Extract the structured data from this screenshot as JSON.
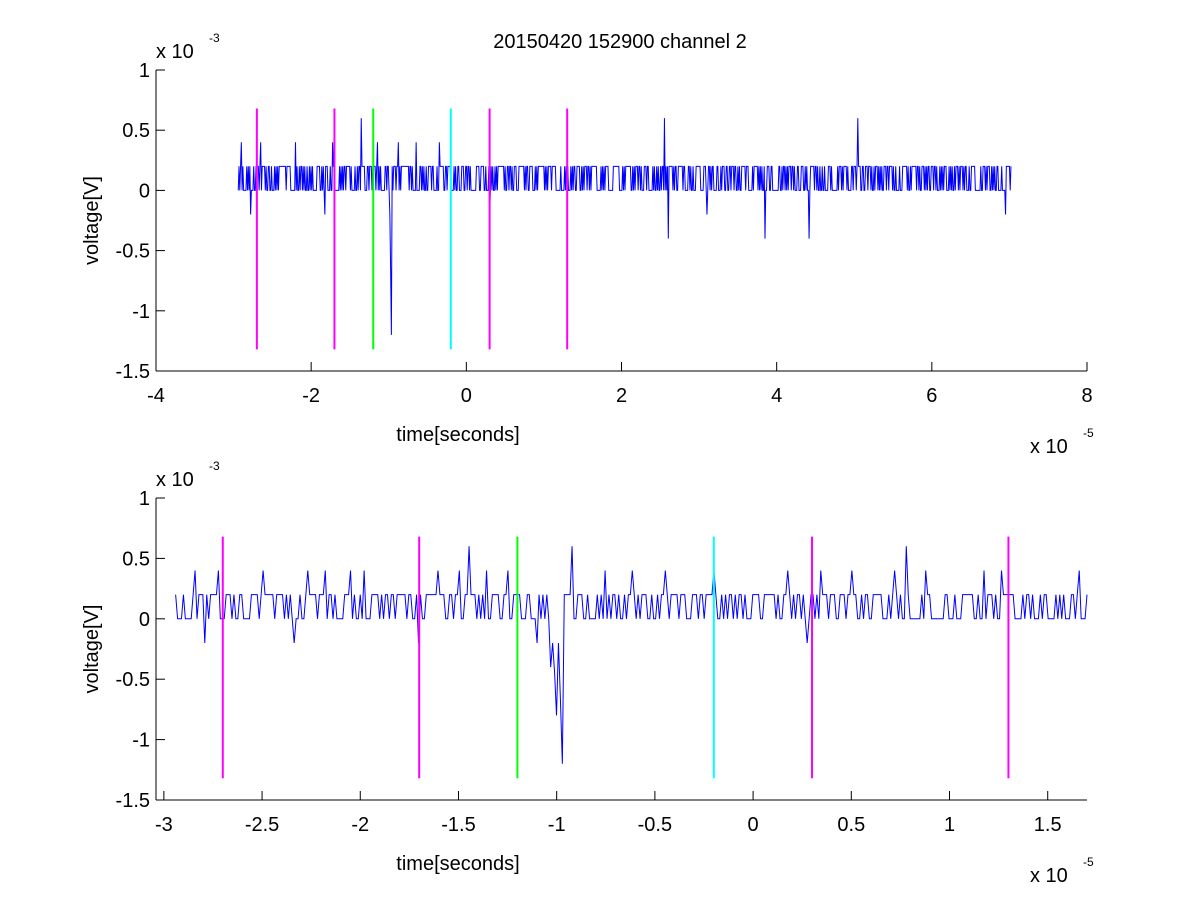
{
  "figure": {
    "title": "20150420 152900 channel 2",
    "background": "#ffffff"
  },
  "chart_data": [
    {
      "type": "line",
      "title": "20150420 152900 channel 2",
      "xlabel": "time[seconds]",
      "ylabel": "voltage[V]",
      "x_multiplier_label": "x 10",
      "x_multiplier_exp": "-5",
      "y_multiplier_label": "x 10",
      "y_multiplier_exp": "-3",
      "xlim": [
        -4,
        8
      ],
      "ylim": [
        -1.5,
        1
      ],
      "xticks": [
        -4,
        -2,
        0,
        2,
        4,
        6,
        8
      ],
      "xtick_labels": [
        "-4",
        "-2",
        "0",
        "2",
        "4",
        "6",
        "8"
      ],
      "yticks": [
        -1.5,
        -1,
        -0.5,
        0,
        0.5,
        1
      ],
      "ytick_labels": [
        "-1.5",
        "-1",
        "-0.5",
        "0",
        "0.5",
        "1"
      ],
      "grid": false,
      "series": [
        {
          "color": "#0000ff",
          "x_start": -2.94,
          "x_end": 7.02,
          "n_points": 1000,
          "baseline_levels": [
            0,
            0.2
          ],
          "spikes": [
            {
              "x": -2.9,
              "y": 0.4
            },
            {
              "x": -2.78,
              "y": -0.2
            },
            {
              "x": -2.65,
              "y": 0.4
            },
            {
              "x": -2.2,
              "y": 0.4
            },
            {
              "x": -1.82,
              "y": -0.2
            },
            {
              "x": -1.72,
              "y": 0.4
            },
            {
              "x": -1.35,
              "y": 0.6
            },
            {
              "x": -1.15,
              "y": 0.4
            },
            {
              "x": -0.97,
              "y": -1.2
            },
            {
              "x": -0.88,
              "y": 0.4
            },
            {
              "x": -0.65,
              "y": 0.4
            },
            {
              "x": -0.35,
              "y": 0.4
            },
            {
              "x": 0.3,
              "y": -0.2
            },
            {
              "x": 2.6,
              "y": -0.4
            },
            {
              "x": 2.55,
              "y": 0.6
            },
            {
              "x": 3.1,
              "y": -0.2
            },
            {
              "x": 3.85,
              "y": -0.4
            },
            {
              "x": 4.42,
              "y": -0.4
            },
            {
              "x": 5.05,
              "y": 0.6
            },
            {
              "x": 6.95,
              "y": -0.2
            }
          ]
        }
      ],
      "markers": [
        {
          "x": -2.7,
          "y0": -1.32,
          "y1": 0.68,
          "color": "#ff00ff"
        },
        {
          "x": -1.7,
          "y0": -1.32,
          "y1": 0.68,
          "color": "#ff00ff"
        },
        {
          "x": -1.2,
          "y0": -1.32,
          "y1": 0.68,
          "color": "#00ff00"
        },
        {
          "x": -0.2,
          "y0": -1.32,
          "y1": 0.68,
          "color": "#00ffff"
        },
        {
          "x": 0.3,
          "y0": -1.32,
          "y1": 0.68,
          "color": "#ff00ff"
        },
        {
          "x": 1.3,
          "y0": -1.32,
          "y1": 0.68,
          "color": "#ff00ff"
        }
      ]
    },
    {
      "type": "line",
      "title": "",
      "xlabel": "time[seconds]",
      "ylabel": "voltage[V]",
      "x_multiplier_label": "x 10",
      "x_multiplier_exp": "-5",
      "y_multiplier_label": "x 10",
      "y_multiplier_exp": "-3",
      "xlim": [
        -3.04,
        1.7
      ],
      "ylim": [
        -1.5,
        1
      ],
      "xticks": [
        -3,
        -2.5,
        -2,
        -1.5,
        -1,
        -0.5,
        0,
        0.5,
        1,
        1.5
      ],
      "xtick_labels": [
        "-3",
        "-2.5",
        "-2",
        "-1.5",
        "-1",
        "-0.5",
        "0",
        "0.5",
        "1",
        "1.5"
      ],
      "yticks": [
        -1.5,
        -1,
        -0.5,
        0,
        0.5,
        1
      ],
      "ytick_labels": [
        "-1.5",
        "-1",
        "-0.5",
        "0",
        "0.5",
        "1"
      ],
      "grid": false,
      "series": [
        {
          "color": "#0000ff",
          "x_start": -2.94,
          "x_end": 1.7,
          "n_points": 470,
          "baseline_levels": [
            0,
            0.2
          ],
          "spikes": [
            {
              "x": -2.84,
              "y": 0.4
            },
            {
              "x": -2.79,
              "y": -0.2
            },
            {
              "x": -2.72,
              "y": 0.4
            },
            {
              "x": -2.49,
              "y": 0.4
            },
            {
              "x": -2.34,
              "y": -0.2
            },
            {
              "x": -2.27,
              "y": 0.4
            },
            {
              "x": -2.18,
              "y": 0.4
            },
            {
              "x": -2.05,
              "y": 0.4
            },
            {
              "x": -1.98,
              "y": 0.4
            },
            {
              "x": -1.7,
              "y": -0.2
            },
            {
              "x": -1.6,
              "y": 0.4
            },
            {
              "x": -1.5,
              "y": 0.4
            },
            {
              "x": -1.45,
              "y": 0.6
            },
            {
              "x": -1.36,
              "y": 0.4
            },
            {
              "x": -1.25,
              "y": 0.4
            },
            {
              "x": -1.1,
              "y": -0.2
            },
            {
              "x": -1.03,
              "y": -0.4
            },
            {
              "x": -1.0,
              "y": -0.8
            },
            {
              "x": -0.97,
              "y": -1.2
            },
            {
              "x": -0.92,
              "y": 0.6
            },
            {
              "x": -0.75,
              "y": 0.4
            },
            {
              "x": -0.62,
              "y": 0.4
            },
            {
              "x": -0.45,
              "y": 0.4
            },
            {
              "x": -0.2,
              "y": 0.4
            },
            {
              "x": 0.18,
              "y": 0.4
            },
            {
              "x": 0.28,
              "y": -0.2
            },
            {
              "x": 0.34,
              "y": 0.4
            },
            {
              "x": 0.5,
              "y": 0.4
            },
            {
              "x": 0.72,
              "y": 0.4
            },
            {
              "x": 0.78,
              "y": 0.6
            },
            {
              "x": 0.88,
              "y": 0.4
            },
            {
              "x": 1.18,
              "y": 0.4
            },
            {
              "x": 1.26,
              "y": 0.4
            },
            {
              "x": 1.66,
              "y": 0.4
            }
          ]
        }
      ],
      "markers": [
        {
          "x": -2.7,
          "y0": -1.32,
          "y1": 0.68,
          "color": "#ff00ff"
        },
        {
          "x": -1.7,
          "y0": -1.32,
          "y1": 0.68,
          "color": "#ff00ff"
        },
        {
          "x": -1.2,
          "y0": -1.32,
          "y1": 0.68,
          "color": "#00ff00"
        },
        {
          "x": -0.2,
          "y0": -1.32,
          "y1": 0.68,
          "color": "#00ffff"
        },
        {
          "x": 0.3,
          "y0": -1.32,
          "y1": 0.68,
          "color": "#ff00ff"
        },
        {
          "x": 1.3,
          "y0": -1.32,
          "y1": 0.68,
          "color": "#ff00ff"
        }
      ]
    }
  ]
}
